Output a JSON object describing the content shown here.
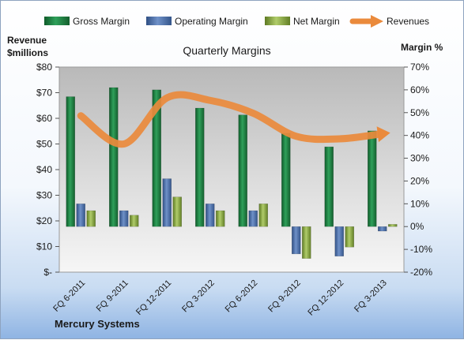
{
  "chart_data": {
    "type": "bar",
    "title": "Quarterly Margins",
    "categories": [
      "FQ 6-2011",
      "FQ 9-2011",
      "FQ 12-2011",
      "FQ 3-2012",
      "FQ 6-2012",
      "FQ 9-2012",
      "FQ 12-2012",
      "FQ 3-2013"
    ],
    "series": [
      {
        "name": "Gross Margin",
        "axis": "right",
        "color": "#1e7a3e",
        "values": [
          57,
          61,
          60,
          52,
          49,
          41,
          35,
          42
        ]
      },
      {
        "name": "Operating Margin",
        "axis": "right",
        "color": "#4d6fa8",
        "values": [
          10,
          7,
          21,
          10,
          7,
          -12,
          -13,
          -2
        ]
      },
      {
        "name": "Net Margin",
        "axis": "right",
        "color": "#8fae4a",
        "values": [
          7,
          5,
          13,
          7,
          10,
          -14,
          -9,
          1
        ]
      },
      {
        "name": "Revenues",
        "type": "line",
        "axis": "left",
        "color": "#ea8a3c",
        "values": [
          61,
          50,
          68,
          67,
          62,
          53,
          52,
          54
        ]
      }
    ],
    "left_axis": {
      "label": "Revenue\n$millions",
      "ylim": [
        0,
        80
      ],
      "ticks": [
        "$-",
        "$10",
        "$20",
        "$30",
        "$40",
        "$50",
        "$60",
        "$70",
        "$80"
      ]
    },
    "right_axis": {
      "label": "Margin %",
      "ylim": [
        -20,
        70
      ],
      "ticks": [
        "-20%",
        "-10%",
        "0%",
        "10%",
        "20%",
        "30%",
        "40%",
        "50%",
        "60%",
        "70%"
      ]
    },
    "footer": "Mercury Systems",
    "legend_position": "top",
    "grid": false
  }
}
